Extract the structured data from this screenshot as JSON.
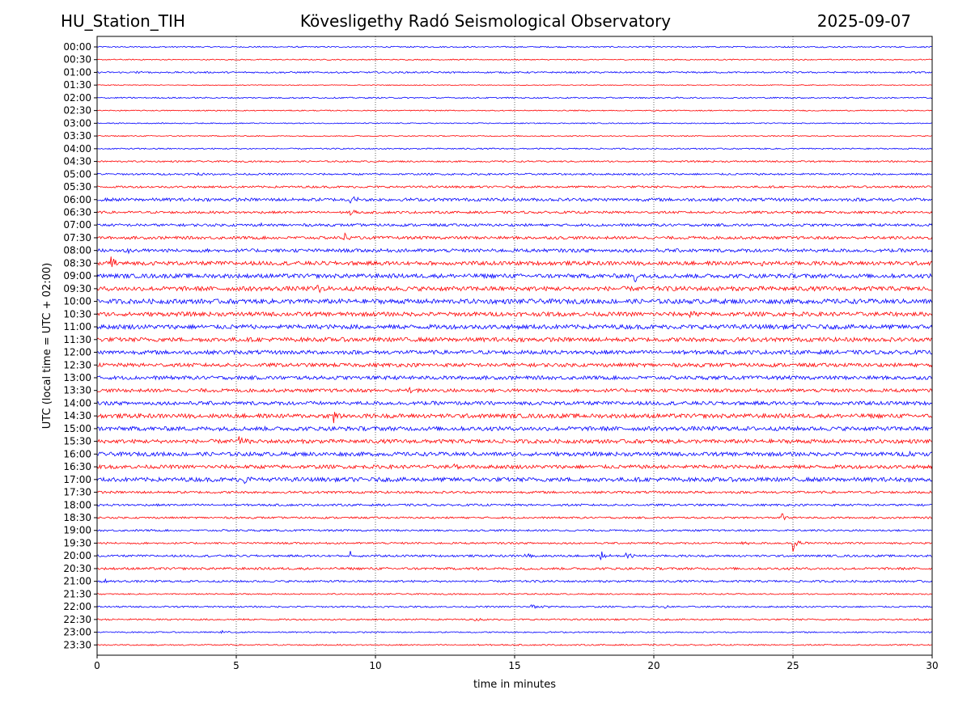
{
  "header": {
    "station": "HU_Station_TIH",
    "title": "Kövesligethy Radó Seismological Observatory",
    "date": "2025-09-07"
  },
  "chart_data": {
    "type": "line",
    "chart_kind": "helicorder",
    "xlabel": "time in minutes",
    "ylabel": "UTC (local time = UTC + 02:00)",
    "xlim": [
      0,
      30
    ],
    "xticks": [
      0,
      5,
      10,
      15,
      20,
      25,
      30
    ],
    "x_grid": "dotted vertical lines",
    "colors": {
      "even_row": "#0000ff",
      "odd_row": "#ff0000"
    },
    "rows": [
      "00:00",
      "00:30",
      "01:00",
      "01:30",
      "02:00",
      "02:30",
      "03:00",
      "03:30",
      "04:00",
      "04:30",
      "05:00",
      "05:30",
      "06:00",
      "06:30",
      "07:00",
      "07:30",
      "08:00",
      "08:30",
      "09:00",
      "09:30",
      "10:00",
      "10:30",
      "11:00",
      "11:30",
      "12:00",
      "12:30",
      "13:00",
      "13:30",
      "14:00",
      "14:30",
      "15:00",
      "15:30",
      "16:00",
      "16:30",
      "17:00",
      "17:30",
      "18:00",
      "18:30",
      "19:00",
      "19:30",
      "20:00",
      "20:30",
      "21:00",
      "21:30",
      "22:00",
      "22:30",
      "23:00",
      "23:30"
    ],
    "noise_level": [
      0.5,
      0.4,
      0.6,
      0.3,
      0.5,
      0.4,
      0.4,
      0.4,
      0.5,
      0.6,
      0.7,
      0.8,
      1.2,
      0.9,
      1.0,
      1.1,
      1.3,
      1.5,
      1.6,
      1.7,
      1.8,
      1.6,
      1.7,
      1.6,
      1.5,
      1.4,
      1.4,
      1.3,
      1.4,
      1.6,
      1.6,
      1.5,
      1.5,
      1.4,
      1.6,
      0.9,
      0.8,
      0.7,
      0.7,
      0.7,
      0.8,
      0.9,
      0.8,
      0.5,
      0.6,
      0.6,
      0.5,
      0.5
    ],
    "events": [
      {
        "row": "01:00",
        "minute": 1.4,
        "amplitude": 2.2
      },
      {
        "row": "05:00",
        "minute": 3.6,
        "amplitude": 2.4
      },
      {
        "row": "06:00",
        "minute": 9.1,
        "amplitude": 9.0
      },
      {
        "row": "06:30",
        "minute": 9.1,
        "amplitude": 5.0
      },
      {
        "row": "07:00",
        "minute": 5.9,
        "amplitude": 3.0
      },
      {
        "row": "07:30",
        "minute": 8.9,
        "amplitude": 6.0
      },
      {
        "row": "08:00",
        "minute": 1.0,
        "amplitude": 4.0
      },
      {
        "row": "08:30",
        "minute": 0.5,
        "amplitude": 7.0
      },
      {
        "row": "08:30",
        "minute": 23.8,
        "amplitude": 7.0
      },
      {
        "row": "09:00",
        "minute": 19.3,
        "amplitude": 9.0
      },
      {
        "row": "09:30",
        "minute": 7.9,
        "amplitude": 6.5
      },
      {
        "row": "10:30",
        "minute": 21.3,
        "amplitude": 5.0
      },
      {
        "row": "11:00",
        "minute": 5.8,
        "amplitude": 5.0
      },
      {
        "row": "13:00",
        "minute": 9.3,
        "amplitude": 5.0
      },
      {
        "row": "13:30",
        "minute": 11.2,
        "amplitude": 5.0
      },
      {
        "row": "14:30",
        "minute": 8.5,
        "amplitude": 12.0
      },
      {
        "row": "15:30",
        "minute": 5.1,
        "amplitude": 6.0
      },
      {
        "row": "16:00",
        "minute": 29.1,
        "amplitude": 5.0
      },
      {
        "row": "16:30",
        "minute": 12.8,
        "amplitude": 4.0
      },
      {
        "row": "17:00",
        "minute": 5.3,
        "amplitude": 5.0
      },
      {
        "row": "18:30",
        "minute": 24.6,
        "amplitude": 7.0
      },
      {
        "row": "19:30",
        "minute": 25.0,
        "amplitude": 11.0
      },
      {
        "row": "19:30",
        "minute": 23.2,
        "amplitude": 3.0
      },
      {
        "row": "20:00",
        "minute": 9.1,
        "amplitude": 6.0
      },
      {
        "row": "20:00",
        "minute": 15.4,
        "amplitude": 6.0
      },
      {
        "row": "20:00",
        "minute": 18.1,
        "amplitude": 8.0
      },
      {
        "row": "20:00",
        "minute": 19.0,
        "amplitude": 9.0
      },
      {
        "row": "20:30",
        "minute": 13.5,
        "amplitude": 2.0
      },
      {
        "row": "21:00",
        "minute": 0.2,
        "amplitude": 3.0
      },
      {
        "row": "22:00",
        "minute": 15.6,
        "amplitude": 5.0
      },
      {
        "row": "22:00",
        "minute": 16.0,
        "amplitude": 3.0
      },
      {
        "row": "22:00",
        "minute": 20.4,
        "amplitude": 2.0
      },
      {
        "row": "22:30",
        "minute": 13.6,
        "amplitude": 2.5
      },
      {
        "row": "23:00",
        "minute": 4.5,
        "amplitude": 2.5
      },
      {
        "row": "23:30",
        "minute": 1.4,
        "amplitude": 2.5
      }
    ]
  }
}
